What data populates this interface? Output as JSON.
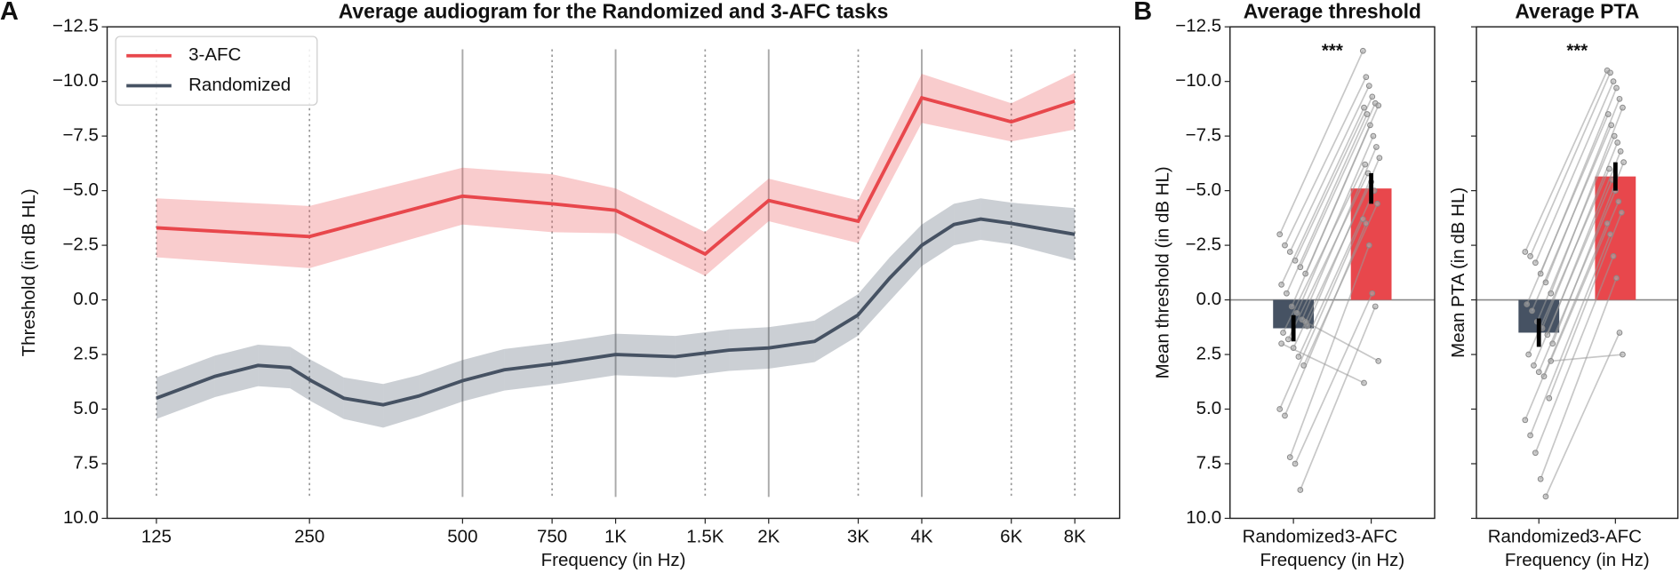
{
  "chart_data": [
    {
      "type": "line",
      "panel_label": "A",
      "title": "Average audiogram for the Randomized and 3-AFC tasks",
      "xlabel": "Frequency (in Hz)",
      "ylabel": "Threshold (in dB HL)",
      "x_scale": "log",
      "xlim": [
        100,
        9800
      ],
      "xticks": [
        125,
        250,
        500,
        750,
        {
          "value": 1000,
          "label": "1K"
        },
        {
          "value": 1500,
          "label": "1.5K"
        },
        {
          "value": 2000,
          "label": "2K"
        },
        {
          "value": 3000,
          "label": "3K"
        },
        {
          "value": 4000,
          "label": "4K"
        },
        {
          "value": 6000,
          "label": "6K"
        },
        {
          "value": 8000,
          "label": "8K"
        }
      ],
      "xgrid_solid": [
        500,
        1000,
        2000,
        4000
      ],
      "ylim": [
        -12.5,
        10
      ],
      "y_inverted": true,
      "yticks": [
        {
          "value": -12.5,
          "label": "−12.5"
        },
        {
          "value": -10,
          "label": "−10.0"
        },
        {
          "value": -7.5,
          "label": "−7.5"
        },
        {
          "value": -5,
          "label": "−5.0"
        },
        {
          "value": -2.5,
          "label": "−2.5"
        },
        {
          "value": 0,
          "label": "0.0"
        },
        2.5,
        {
          "value": 5,
          "label": "5.0"
        },
        7.5,
        {
          "value": 10,
          "label": "10.0"
        }
      ],
      "legend": "upper left",
      "series": [
        {
          "name": "3-AFC",
          "color": "#e8474c",
          "x": [
            125,
            250,
            500,
            750,
            1000,
            1500,
            2000,
            3000,
            4000,
            6000,
            8000
          ],
          "values": [
            -3.3,
            -2.9,
            -4.75,
            -4.4,
            -4.1,
            -2.1,
            -4.55,
            -3.6,
            -9.25,
            -8.15,
            -9.1
          ],
          "lower": [
            -4.65,
            -4.3,
            -6.05,
            -5.75,
            -5.1,
            -3.1,
            -5.55,
            -4.55,
            -10.35,
            -9.0,
            -10.4
          ],
          "upper": [
            -1.95,
            -1.45,
            -3.45,
            -3.1,
            -3.05,
            -1.1,
            -3.6,
            -2.6,
            -8.1,
            -7.25,
            -7.8
          ]
        },
        {
          "name": "Randomized",
          "color": "#465263",
          "x": [
            125,
            163,
            198,
            229,
            252,
            292,
            349,
            410,
            500,
            604,
            770,
            1000,
            1311,
            1671,
            2000,
            2462,
            2994,
            3460,
            4000,
            4627,
            5223,
            6008,
            8000
          ],
          "values": [
            4.5,
            3.5,
            3.0,
            3.1,
            3.7,
            4.5,
            4.8,
            4.4,
            3.7,
            3.2,
            2.9,
            2.5,
            2.6,
            2.3,
            2.2,
            1.9,
            0.7,
            -1.0,
            -2.5,
            -3.45,
            -3.7,
            -3.5,
            -3.0
          ],
          "lower": [
            3.55,
            2.55,
            2.05,
            2.15,
            2.75,
            3.55,
            3.85,
            3.45,
            2.75,
            2.25,
            1.95,
            1.55,
            1.65,
            1.35,
            1.25,
            0.95,
            -0.25,
            -1.95,
            -3.45,
            -4.4,
            -4.65,
            -4.45,
            -4.2
          ],
          "upper": [
            5.45,
            4.45,
            3.95,
            4.05,
            4.65,
            5.45,
            5.85,
            5.35,
            4.65,
            4.15,
            3.85,
            3.45,
            3.55,
            3.25,
            3.15,
            2.85,
            1.65,
            0.05,
            -1.55,
            -2.5,
            -2.75,
            -2.55,
            -1.8
          ]
        }
      ]
    },
    {
      "type": "bar",
      "panel_label": "B",
      "title": "Average threshold",
      "xlabel": "Frequency (in Hz)",
      "ylabel": "Mean threshold (in dB HL)",
      "categories": [
        "Randomized",
        "3-AFC"
      ],
      "values": [
        1.3,
        -5.1
      ],
      "errors": [
        0.6,
        0.7
      ],
      "colors": [
        "#465263",
        "#e8474c"
      ],
      "annotation": "***",
      "reference_line": 0,
      "ylim": [
        -12.5,
        10
      ],
      "y_inverted": true,
      "ytick_labels": true,
      "yticks": [
        {
          "value": -12.5,
          "label": "−12.5"
        },
        {
          "value": -10,
          "label": "−10.0"
        },
        {
          "value": -7.5,
          "label": "−7.5"
        },
        {
          "value": -5,
          "label": "−5.0"
        },
        {
          "value": -2.5,
          "label": "−2.5"
        },
        {
          "value": 0,
          "label": "0.0"
        },
        2.5,
        {
          "value": 5,
          "label": "5.0"
        },
        7.5,
        {
          "value": 10,
          "label": "10.0"
        }
      ],
      "subjects": [
        [
          -3.0,
          -11.4
        ],
        [
          -2.5,
          -10.2
        ],
        [
          -2.2,
          -9.8
        ],
        [
          -1.8,
          -9.3
        ],
        [
          -1.5,
          -9.0
        ],
        [
          -1.2,
          -8.9
        ],
        [
          -0.7,
          -8.8
        ],
        [
          -0.3,
          -8.5
        ],
        [
          0.3,
          -8.0
        ],
        [
          0.6,
          -7.5
        ],
        [
          0.9,
          -7.0
        ],
        [
          1.2,
          -6.5
        ],
        [
          1.5,
          -6.2
        ],
        [
          1.8,
          -5.8
        ],
        [
          2.2,
          -5.4
        ],
        [
          2.6,
          -5.0
        ],
        [
          3.0,
          -4.4
        ],
        [
          5.0,
          -3.7
        ],
        [
          5.3,
          -3.5
        ],
        [
          7.2,
          -2.5
        ],
        [
          7.5,
          -0.3
        ],
        [
          8.7,
          0.3
        ],
        [
          1.0,
          2.8
        ],
        [
          2.0,
          3.8
        ]
      ]
    },
    {
      "type": "bar",
      "title": "Average PTA",
      "xlabel": "Frequency (in Hz)",
      "ylabel": "Mean PTA (in dB HL)",
      "categories": [
        "Randomized",
        "3-AFC"
      ],
      "values": [
        1.5,
        -5.65
      ],
      "errors": [
        0.65,
        0.65
      ],
      "colors": [
        "#465263",
        "#e8474c"
      ],
      "annotation": "***",
      "reference_line": 0,
      "ylim": [
        -12.5,
        10
      ],
      "y_inverted": true,
      "ytick_labels": false,
      "yticks": [
        -12.5,
        -10,
        -7.5,
        -5,
        -2.5,
        0,
        2.5,
        5,
        7.5,
        10
      ],
      "subjects": [
        [
          -2.2,
          -10.5
        ],
        [
          -2.0,
          -10.4
        ],
        [
          -1.7,
          -10.0
        ],
        [
          -1.2,
          -9.7
        ],
        [
          -0.8,
          -9.2
        ],
        [
          -0.3,
          -8.8
        ],
        [
          0.2,
          -8.5
        ],
        [
          0.5,
          -8.0
        ],
        [
          1.0,
          -7.5
        ],
        [
          1.3,
          -7.2
        ],
        [
          1.6,
          -6.8
        ],
        [
          2.0,
          -6.3
        ],
        [
          2.5,
          -6.0
        ],
        [
          3.0,
          -5.5
        ],
        [
          3.3,
          -5.0
        ],
        [
          3.5,
          -4.5
        ],
        [
          4.5,
          -4.0
        ],
        [
          5.5,
          -3.5
        ],
        [
          6.2,
          -3.0
        ],
        [
          7.0,
          -2.0
        ],
        [
          8.2,
          -1.0
        ],
        [
          9.0,
          1.5
        ],
        [
          2.8,
          2.5
        ]
      ]
    }
  ]
}
